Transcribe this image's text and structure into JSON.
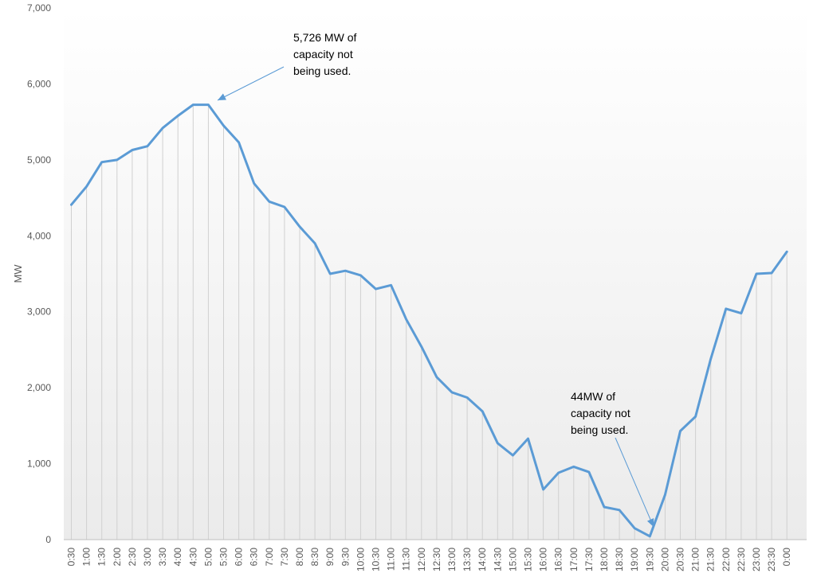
{
  "chart_data": {
    "type": "area",
    "title": "",
    "xlabel": "",
    "ylabel": "MW",
    "ylim": [
      0,
      7000
    ],
    "yticks": [
      0,
      1000,
      2000,
      3000,
      4000,
      5000,
      6000,
      7000
    ],
    "ytick_labels": [
      "0",
      "1,000",
      "2,000",
      "3,000",
      "4,000",
      "5,000",
      "6,000",
      "7,000"
    ],
    "grid": "vertical",
    "line_color": "#5b9bd5",
    "categories": [
      "0:30",
      "1:00",
      "1:30",
      "2:00",
      "2:30",
      "3:00",
      "3:30",
      "4:00",
      "4:30",
      "5:00",
      "5:30",
      "6:00",
      "6:30",
      "7:00",
      "7:30",
      "8:00",
      "8:30",
      "9:00",
      "9:30",
      "10:00",
      "10:30",
      "11:00",
      "11:30",
      "12:00",
      "12:30",
      "13:00",
      "13:30",
      "14:00",
      "14:30",
      "15:00",
      "15:30",
      "16:00",
      "16:30",
      "17:00",
      "17:30",
      "18:00",
      "18:30",
      "19:00",
      "19:30",
      "20:00",
      "20:30",
      "21:00",
      "21:30",
      "22:00",
      "22:30",
      "23:00",
      "23:30",
      "0:00"
    ],
    "values": [
      4410,
      4650,
      4970,
      5000,
      5130,
      5180,
      5420,
      5580,
      5726,
      5726,
      5450,
      5230,
      4690,
      4450,
      4380,
      4120,
      3900,
      3500,
      3540,
      3480,
      3300,
      3350,
      2900,
      2540,
      2140,
      1940,
      1870,
      1690,
      1270,
      1110,
      1330,
      660,
      880,
      960,
      890,
      430,
      390,
      150,
      44,
      590,
      1430,
      1620,
      2380,
      3040,
      2980,
      3500,
      3510,
      3790
    ],
    "annotations": [
      {
        "lines": [
          "5,726 MW of",
          "capacity not",
          "being used."
        ],
        "target_index": 9
      },
      {
        "lines": [
          "44MW of",
          "capacity not",
          "being used."
        ],
        "target_index": 38
      }
    ]
  }
}
